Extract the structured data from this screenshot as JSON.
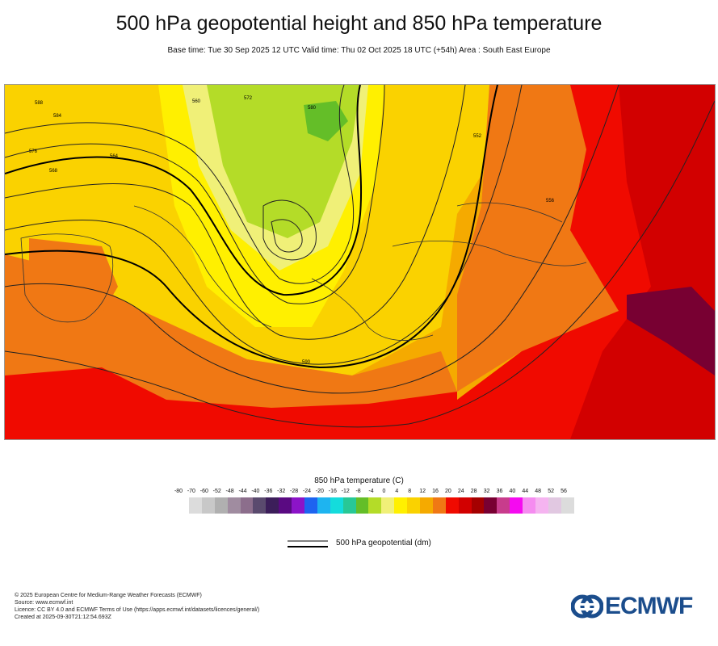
{
  "header": {
    "title": "500 hPa geopotential height and 850 hPa temperature",
    "subtitle": "Base time: Tue 30 Sep 2025 12 UTC Valid time: Thu 02 Oct 2025 18 UTC (+54h) Area : South East Europe"
  },
  "map": {
    "contour_labels": [
      "588",
      "584",
      "576",
      "568",
      "564",
      "560",
      "572",
      "580",
      "552",
      "556",
      "590"
    ]
  },
  "legend": {
    "title": "850 hPa temperature (C)",
    "ticks": [
      "-80",
      "-70",
      "-60",
      "-52",
      "-48",
      "-44",
      "-40",
      "-36",
      "-32",
      "-28",
      "-24",
      "-20",
      "-16",
      "-12",
      "-8",
      "-4",
      "0",
      "4",
      "8",
      "12",
      "16",
      "20",
      "24",
      "28",
      "32",
      "36",
      "40",
      "44",
      "48",
      "52",
      "56"
    ],
    "colors": [
      "#dcdcdc",
      "#c8c8c8",
      "#b0b0b0",
      "#a08ca0",
      "#8c6e8c",
      "#5a4a6e",
      "#3c1e5a",
      "#5a0a82",
      "#8c14c8",
      "#1e64f0",
      "#1eb4f0",
      "#14dcdc",
      "#28c896",
      "#64be28",
      "#b4dc28",
      "#f0f078",
      "#fff000",
      "#fad200",
      "#f5aa00",
      "#f07814",
      "#f00a00",
      "#d20000",
      "#a50000",
      "#780032",
      "#c83c8c",
      "#f50af0",
      "#f58cf0",
      "#f5b4f0",
      "#e1c8e1",
      "#dcdcdc"
    ],
    "geopotential_label": "500 hPa geopotential (dm)"
  },
  "footer": {
    "lines": [
      "© 2025 European Centre for Medium-Range Weather Forecasts (ECMWF)",
      "Source: www.ecmwf.int",
      "Licence: CC BY 4.0 and ECMWF Terms of Use (https://apps.ecmwf.int/datasets/licences/general/)",
      "Created at 2025-09-30T21:12:54.693Z"
    ]
  },
  "logo": {
    "text": "ECMWF"
  }
}
